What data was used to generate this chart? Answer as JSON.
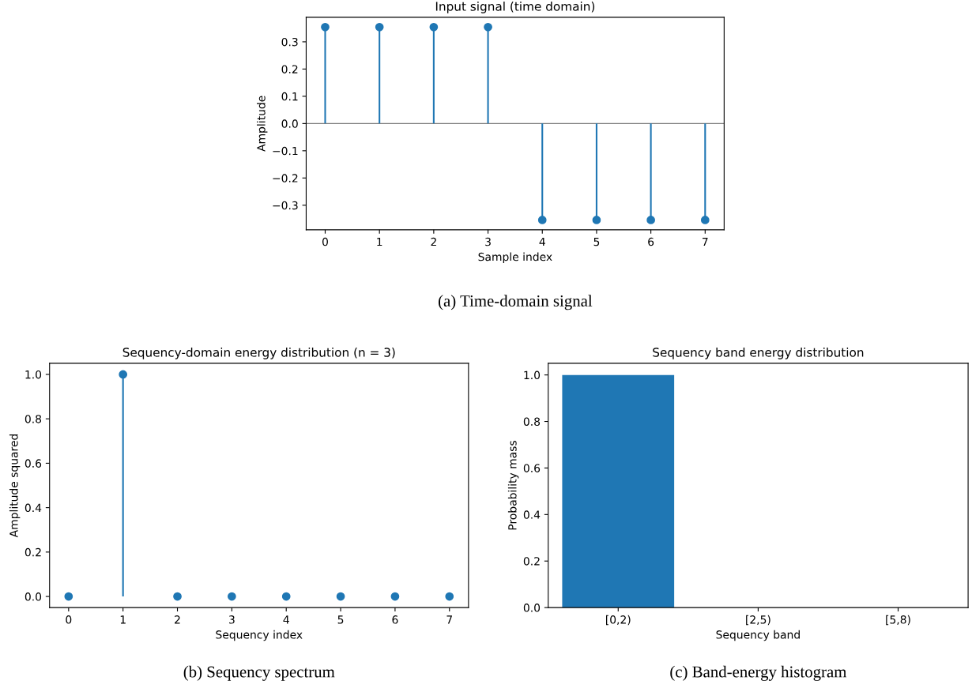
{
  "chart_data": [
    {
      "type": "lollipop",
      "title": "Input signal (time domain)",
      "xlabel": "Sample index",
      "ylabel": "Amplitude",
      "x": [
        0,
        1,
        2,
        3,
        4,
        5,
        6,
        7
      ],
      "values": [
        0.354,
        0.354,
        0.354,
        0.354,
        -0.354,
        -0.354,
        -0.354,
        -0.354
      ],
      "color": "#1f77b4",
      "xlim": [
        -0.35,
        7.35
      ],
      "xticks": [
        0,
        1,
        2,
        3,
        4,
        5,
        6,
        7
      ],
      "ylim": [
        -0.39,
        0.39
      ],
      "yticks": [
        {
          "value": -0.3,
          "label": "−0.3"
        },
        {
          "value": -0.2,
          "label": "−0.2"
        },
        {
          "value": -0.1,
          "label": "−0.1"
        },
        {
          "value": 0.0,
          "label": "0.0"
        },
        0.1,
        0.2,
        0.3
      ],
      "ref_lines": [
        {
          "axis": "y",
          "value": 0,
          "color": "#808080"
        }
      ],
      "marker": "circle",
      "grid": false,
      "annotations": [
        "(a) Time-domain signal"
      ]
    },
    {
      "type": "lollipop",
      "title": "Sequency-domain energy distribution (n = 3)",
      "xlabel": "Sequency index",
      "ylabel": "Amplitude squared",
      "x": [
        0,
        1,
        2,
        3,
        4,
        5,
        6,
        7
      ],
      "values": [
        0,
        1,
        0,
        0,
        0,
        0,
        0,
        0
      ],
      "color": "#1f77b4",
      "xlim": [
        -0.35,
        7.35
      ],
      "xticks": [
        0,
        1,
        2,
        3,
        4,
        5,
        6,
        7
      ],
      "ylim": [
        -0.05,
        1.05
      ],
      "yticks": [
        {
          "value": 0,
          "label": "0.0"
        },
        0.2,
        0.4,
        0.6,
        0.8,
        {
          "value": 1,
          "label": "1.0"
        }
      ],
      "marker": "circle",
      "grid": false,
      "annotations": [
        "(b) Sequency spectrum"
      ]
    },
    {
      "type": "bar",
      "title": "Sequency band energy distribution",
      "xlabel": "Sequency band",
      "ylabel": "Probability mass",
      "categories": [
        "[0,2)",
        "[2,5)",
        "[5,8)"
      ],
      "values": [
        1,
        0,
        0
      ],
      "color": "#1f77b4",
      "ylim": [
        0,
        1.05
      ],
      "yticks": [
        {
          "value": 0,
          "label": "0.0"
        },
        0.2,
        0.4,
        0.6,
        0.8,
        {
          "value": 1,
          "label": "1.0"
        }
      ],
      "grid": false,
      "annotations": [
        "(c) Band-energy histogram"
      ]
    }
  ]
}
